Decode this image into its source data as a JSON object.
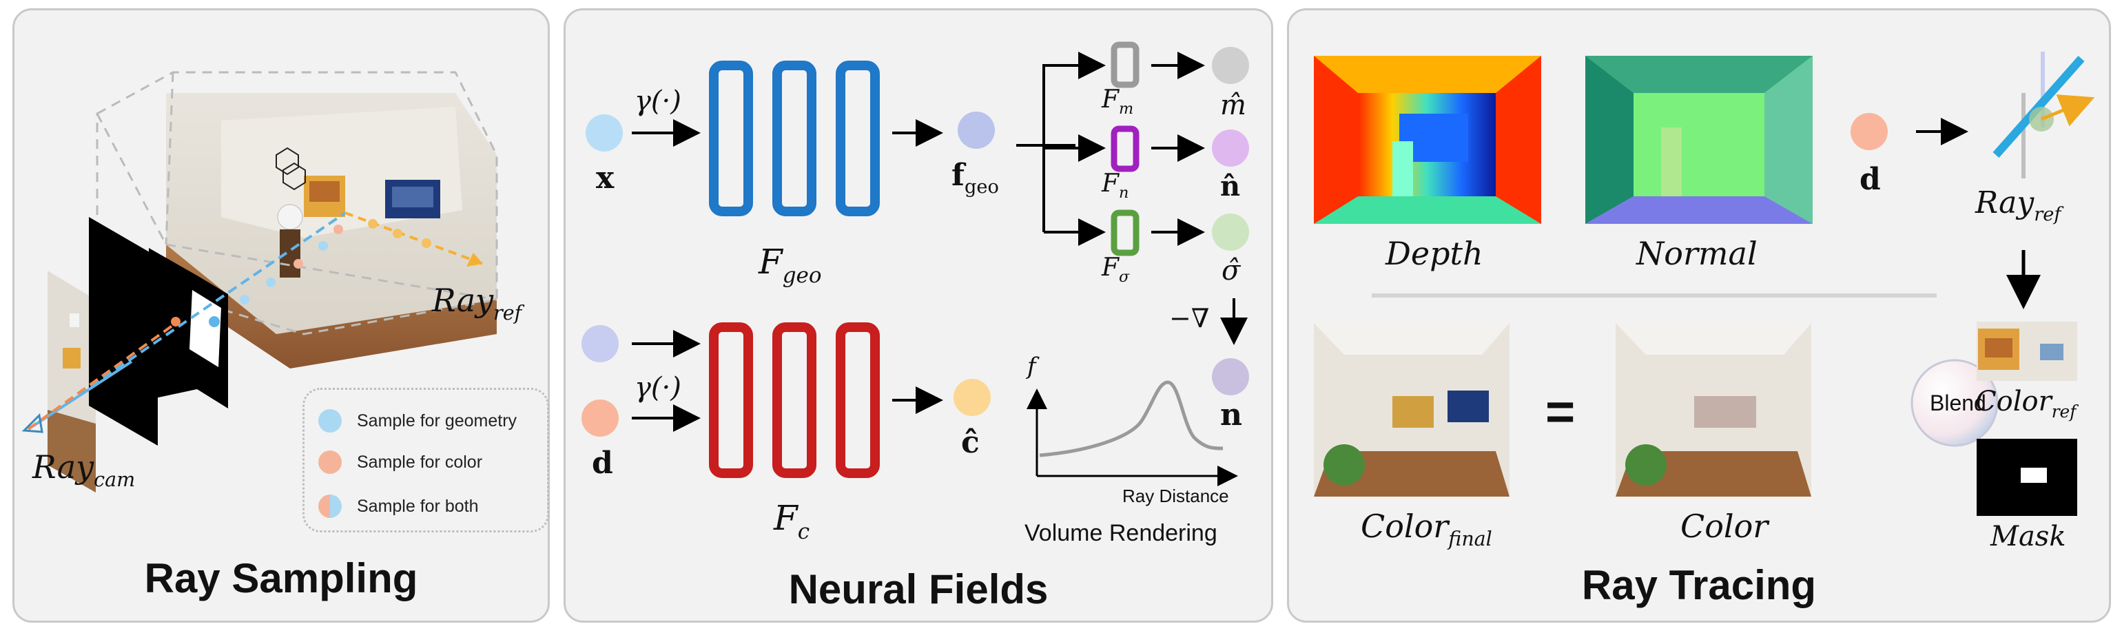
{
  "panels": {
    "ray_sampling": {
      "title": "Ray Sampling",
      "ray_ref": {
        "base": "Ray",
        "sub": "ref"
      },
      "ray_cam": {
        "base": "Ray",
        "sub": "cam"
      },
      "legend": [
        {
          "label": "Sample for geometry",
          "color": "#a9d8f2"
        },
        {
          "label": "Sample for color",
          "color": "#f5b49a"
        },
        {
          "label": "Sample for both",
          "color": "#c8c8e8"
        }
      ]
    },
    "neural_fields": {
      "title": "Neural Fields",
      "input_x": "x",
      "input_d": "d",
      "gamma1": "γ(·)",
      "gamma2": "γ(·)",
      "f_geo_feature": {
        "base": "f",
        "sub": "geo"
      },
      "F_geo": {
        "base": "F",
        "sub": "geo"
      },
      "F_c": {
        "base": "F",
        "sub": "c"
      },
      "F_m": {
        "base": "F",
        "sub": "m"
      },
      "F_n": {
        "base": "F",
        "sub": "n"
      },
      "F_sigma": {
        "base": "F",
        "sub": "σ"
      },
      "out_m": "m̂",
      "out_n_hat": "n̂",
      "out_sigma": "σ̂",
      "out_n": "n",
      "out_c": "ĉ",
      "grad_label": "−∇",
      "plot_ylabel": "f",
      "plot_xlabel": "Ray Distance",
      "volume_rendering": "Volume Rendering",
      "colors": {
        "geo_block": "#1f78c8",
        "color_block": "#c81e1e",
        "Fm": "#9a9a9a",
        "Fn": "#a020c0",
        "Fsigma": "#5aa040"
      }
    },
    "ray_tracing": {
      "title": "Ray Tracing",
      "depth_label": "Depth",
      "normal_label": "Normal",
      "color_final": {
        "base": "Color",
        "sub": "final"
      },
      "color_label": "Color",
      "equals": "=",
      "blend_label": "Blend",
      "input_d": "d",
      "ray_ref": {
        "base": "Ray",
        "sub": "ref"
      },
      "color_ref": {
        "base": "Color",
        "sub": "ref"
      },
      "mask_label": "Mask"
    }
  }
}
